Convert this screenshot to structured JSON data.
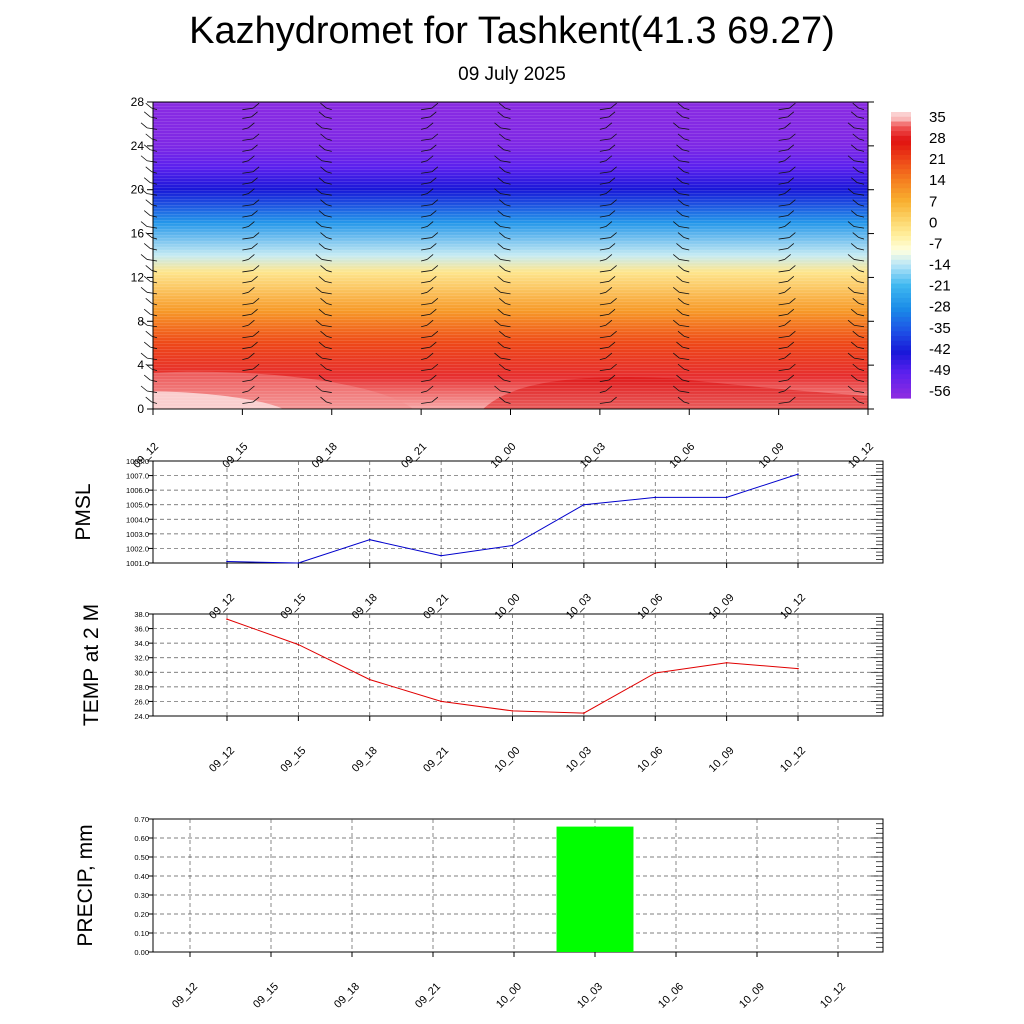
{
  "title": "Kazhydromet for Tashkent(41.3 69.27)",
  "subtitle": "09 July 2025",
  "chart_data": [
    {
      "type": "heatmap",
      "name": "vertical-cross-section",
      "x_ticks": [
        "09_12",
        "09_15",
        "09_18",
        "09_21",
        "10_00",
        "10_03",
        "10_06",
        "10_09",
        "10_12"
      ],
      "y_ticks": [
        0,
        4,
        8,
        12,
        16,
        20,
        24,
        28
      ],
      "ylim": [
        0,
        28
      ],
      "colorbar_labels": [
        "35",
        "28",
        "21",
        "14",
        "7",
        "0",
        "-7",
        "-14",
        "-21",
        "-28",
        "-35",
        "-42",
        "-49",
        "-56"
      ],
      "colorbar_colors": [
        "#f8c8c8",
        "#e02020",
        "#f07018",
        "#f8a018",
        "#fde480",
        "#ffffc0",
        "#c8ecfb",
        "#58c8f0",
        "#1890e8",
        "#1040d8",
        "#2020e0",
        "#7828f0"
      ],
      "field_stops": [
        {
          "level": 0,
          "value": 35
        },
        {
          "level": 3,
          "value": 30
        },
        {
          "level": 6,
          "value": 21
        },
        {
          "level": 9,
          "value": 10
        },
        {
          "level": 12.5,
          "value": -3
        },
        {
          "level": 14,
          "value": -14
        },
        {
          "level": 17,
          "value": -28
        },
        {
          "level": 20,
          "value": -45
        },
        {
          "level": 22,
          "value": -52
        },
        {
          "level": 24,
          "value": -58
        },
        {
          "level": 28,
          "value": -60
        }
      ]
    },
    {
      "type": "line",
      "ylabel": "PMSL",
      "categories": [
        "09_12",
        "09_15",
        "09_18",
        "09_21",
        "10_00",
        "10_03",
        "10_06",
        "10_09",
        "10_12"
      ],
      "y_ticks": [
        "1001.0",
        "1002.0",
        "1003.0",
        "1004.0",
        "1005.0",
        "1006.0",
        "1007.0",
        "1008.0"
      ],
      "ylim": [
        1001,
        1008
      ],
      "values": [
        1001.1,
        1001.0,
        1002.6,
        1001.5,
        1002.2,
        1005.0,
        1005.5,
        1005.5,
        1007.1
      ],
      "color": "#0000cc"
    },
    {
      "type": "line",
      "ylabel": "TEMP at 2 M",
      "categories": [
        "09_12",
        "09_15",
        "09_18",
        "09_21",
        "10_00",
        "10_03",
        "10_06",
        "10_09",
        "10_12"
      ],
      "y_ticks": [
        "24.0",
        "26.0",
        "28.0",
        "30.0",
        "32.0",
        "34.0",
        "36.0",
        "38.0"
      ],
      "ylim": [
        24,
        38
      ],
      "values": [
        37.3,
        33.8,
        29.0,
        26.0,
        24.7,
        24.4,
        29.9,
        31.3,
        30.5
      ],
      "color": "#e00000"
    },
    {
      "type": "bar",
      "ylabel": "PRECIP, mm",
      "categories": [
        "09_12",
        "09_15",
        "09_18",
        "09_21",
        "10_00",
        "10_03",
        "10_06",
        "10_09",
        "10_12"
      ],
      "y_ticks": [
        "0.00",
        "0.10",
        "0.20",
        "0.30",
        "0.40",
        "0.50",
        "0.60",
        "0.70"
      ],
      "ylim": [
        0,
        0.7
      ],
      "values": [
        0,
        0,
        0,
        0,
        0,
        0.66,
        0,
        0,
        0
      ],
      "color": "#00ff00"
    }
  ]
}
